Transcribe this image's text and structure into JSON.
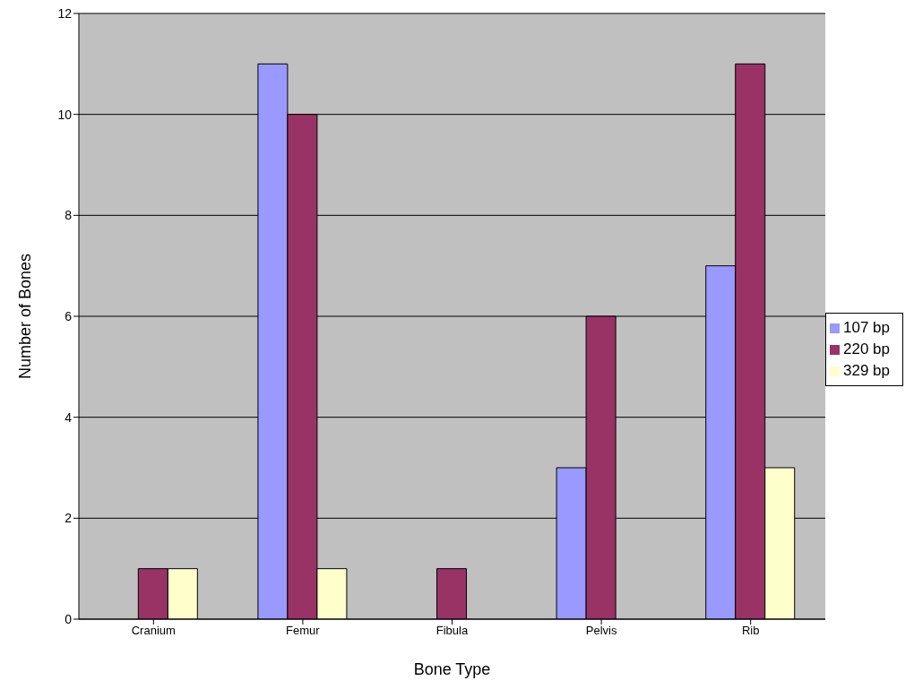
{
  "chart_data": {
    "type": "bar",
    "xlabel": "Bone Type",
    "ylabel": "Number of Bones",
    "categories": [
      "Cranium",
      "Femur",
      "Fibula",
      "Pelvis",
      "Rib"
    ],
    "series": [
      {
        "name": "107 bp",
        "color": "#9999ff",
        "values": [
          0,
          11,
          0,
          3,
          7
        ]
      },
      {
        "name": "220 bp",
        "color": "#993366",
        "values": [
          1,
          10,
          1,
          6,
          11
        ]
      },
      {
        "name": "329 bp",
        "color": "#ffffcc",
        "values": [
          1,
          1,
          0,
          0,
          3
        ]
      }
    ],
    "ylim": [
      0,
      12
    ],
    "yticks": [
      0,
      2,
      4,
      6,
      8,
      10,
      12
    ],
    "grid": "y",
    "legend": "right"
  }
}
